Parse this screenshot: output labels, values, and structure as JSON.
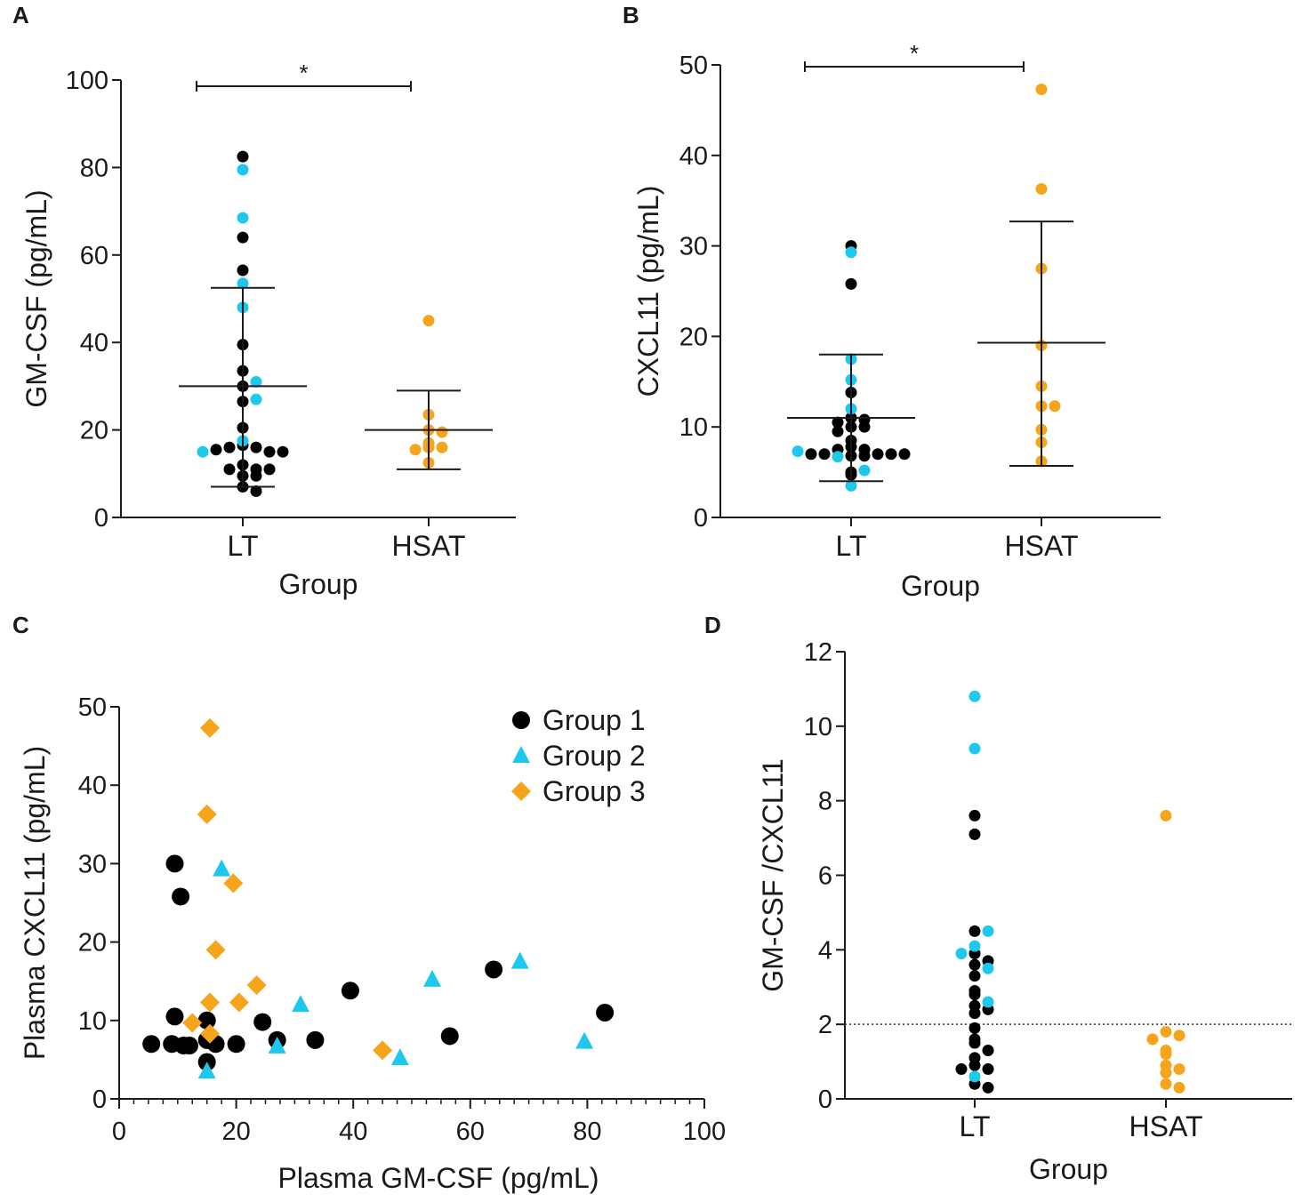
{
  "colors": {
    "group1": "#000000",
    "group2": "#1ec8ec",
    "group3": "#f7a41d",
    "axis": "#1a1a1a"
  },
  "chart_data": [
    {
      "panel": "A",
      "type": "scatter",
      "subtype": "dot-plot with mean and SD",
      "xlabel": "Group",
      "ylabel": "GM-CSF (pg/mL)",
      "categories": [
        "LT",
        "HSAT"
      ],
      "ylim": [
        0,
        100
      ],
      "yticks": [
        0,
        20,
        40,
        60,
        80,
        100
      ],
      "significance": {
        "from": "LT",
        "to": "HSAT",
        "label": "*"
      },
      "summary": [
        {
          "category": "LT",
          "mean": 30,
          "sd_low": 7,
          "sd_high": 52.5
        },
        {
          "category": "HSAT",
          "mean": 20,
          "sd_low": 11,
          "sd_high": 29
        }
      ],
      "series": [
        {
          "name": "Group 1",
          "category": "LT",
          "values": [
            82.5,
            64,
            56.5,
            39.5,
            33.5,
            30,
            26.5,
            20.5,
            16.5,
            16,
            16,
            15,
            15.5,
            15,
            12,
            11,
            11,
            11,
            9.5,
            9.5,
            7,
            6
          ]
        },
        {
          "name": "Group 2",
          "category": "LT",
          "values": [
            79.5,
            68.5,
            53.5,
            48,
            31,
            27,
            17.5,
            15
          ]
        },
        {
          "name": "Group 3",
          "category": "HSAT",
          "values": [
            45,
            23.5,
            20,
            19.5,
            17,
            16,
            16,
            15.5,
            12.5
          ]
        }
      ]
    },
    {
      "panel": "B",
      "type": "scatter",
      "subtype": "dot-plot with mean and SD",
      "xlabel": "Group",
      "ylabel": "CXCL11 (pg/mL)",
      "categories": [
        "LT",
        "HSAT"
      ],
      "ylim": [
        0,
        50
      ],
      "yticks": [
        0,
        10,
        20,
        30,
        40,
        50
      ],
      "significance": {
        "from": "LT",
        "to": "HSAT",
        "label": "*"
      },
      "summary": [
        {
          "category": "LT",
          "mean": 11,
          "sd_low": 4,
          "sd_high": 18
        },
        {
          "category": "HSAT",
          "mean": 19.3,
          "sd_low": 5.7,
          "sd_high": 32.7
        }
      ],
      "series": [
        {
          "name": "Group 1",
          "category": "LT",
          "values": [
            30,
            25.8,
            13.8,
            11,
            10.8,
            10.5,
            10,
            10,
            9.5,
            8.5,
            7.8,
            7.5,
            7.5,
            7,
            7,
            7,
            7,
            7,
            6.8,
            6.8,
            5,
            4.7
          ]
        },
        {
          "name": "Group 2",
          "category": "LT",
          "values": [
            29.3,
            17.5,
            15.2,
            12,
            7.3,
            6.7,
            5.2,
            3.5
          ]
        },
        {
          "name": "Group 3",
          "category": "HSAT",
          "values": [
            47.3,
            36.3,
            27.5,
            19,
            14.5,
            12.3,
            12.3,
            9.7,
            8.3,
            6.2
          ]
        }
      ]
    },
    {
      "panel": "C",
      "type": "scatter",
      "xlabel": "Plasma GM-CSF (pg/mL)",
      "ylabel": "Plasma CXCL11 (pg/mL)",
      "xlim": [
        0,
        100
      ],
      "ylim": [
        0,
        50
      ],
      "xticks": [
        0,
        20,
        40,
        60,
        80,
        100
      ],
      "yticks": [
        0,
        10,
        20,
        30,
        40,
        50
      ],
      "legend_position": "top-right",
      "series": [
        {
          "name": "Group 1",
          "marker": "circle",
          "points": [
            [
              9.5,
              30
            ],
            [
              10.5,
              25.8
            ],
            [
              9.5,
              10.5
            ],
            [
              5.5,
              7
            ],
            [
              9,
              7
            ],
            [
              11,
              6.8
            ],
            [
              12,
              6.8
            ],
            [
              15,
              10
            ],
            [
              15,
              7.5
            ],
            [
              15,
              4.7
            ],
            [
              16.5,
              7
            ],
            [
              20,
              7
            ],
            [
              24.5,
              9.8
            ],
            [
              27,
              7.5
            ],
            [
              33.5,
              7.5
            ],
            [
              39.5,
              13.8
            ],
            [
              56.5,
              8
            ],
            [
              64,
              16.5
            ],
            [
              83,
              11
            ]
          ]
        },
        {
          "name": "Group 2",
          "marker": "triangle",
          "points": [
            [
              15,
              3.5
            ],
            [
              17.5,
              29.3
            ],
            [
              27,
              6.7
            ],
            [
              31,
              12
            ],
            [
              48,
              5.2
            ],
            [
              53.5,
              15.2
            ],
            [
              68.5,
              17.5
            ],
            [
              79.5,
              7.3
            ]
          ]
        },
        {
          "name": "Group 3",
          "marker": "diamond",
          "points": [
            [
              15.5,
              47.3
            ],
            [
              15,
              36.3
            ],
            [
              19.5,
              27.5
            ],
            [
              16.5,
              19
            ],
            [
              15.5,
              12.3
            ],
            [
              12.5,
              9.7
            ],
            [
              15.5,
              8.3
            ],
            [
              20.5,
              12.3
            ],
            [
              23.5,
              14.5
            ],
            [
              45,
              6.2
            ]
          ]
        }
      ],
      "legend": [
        "Group 1",
        "Group 2",
        "Group 3"
      ]
    },
    {
      "panel": "D",
      "type": "scatter",
      "subtype": "dot-plot",
      "xlabel": "Group",
      "ylabel": "GM-CSF /CXCL11",
      "categories": [
        "LT",
        "HSAT"
      ],
      "ylim": [
        0,
        12
      ],
      "yticks": [
        0,
        2,
        4,
        6,
        8,
        10,
        12
      ],
      "reference_line": {
        "y": 2,
        "style": "dotted"
      },
      "series": [
        {
          "name": "Group 1",
          "category": "LT",
          "values": [
            7.6,
            7.1,
            4.5,
            3.9,
            3.7,
            3.6,
            3.3,
            2.9,
            2.8,
            2.5,
            2.4,
            2.3,
            1.9,
            1.6,
            1.5,
            1.3,
            1.1,
            0.9,
            0.8,
            0.8,
            0.4,
            0.3
          ]
        },
        {
          "name": "Group 2",
          "category": "LT",
          "values": [
            10.8,
            9.4,
            4.5,
            4.1,
            3.9,
            3.5,
            2.6,
            0.6
          ]
        },
        {
          "name": "Group 3",
          "category": "HSAT",
          "values": [
            7.6,
            1.8,
            1.7,
            1.6,
            1.3,
            1.2,
            0.9,
            0.8,
            0.7,
            0.4,
            0.3
          ]
        }
      ]
    }
  ]
}
